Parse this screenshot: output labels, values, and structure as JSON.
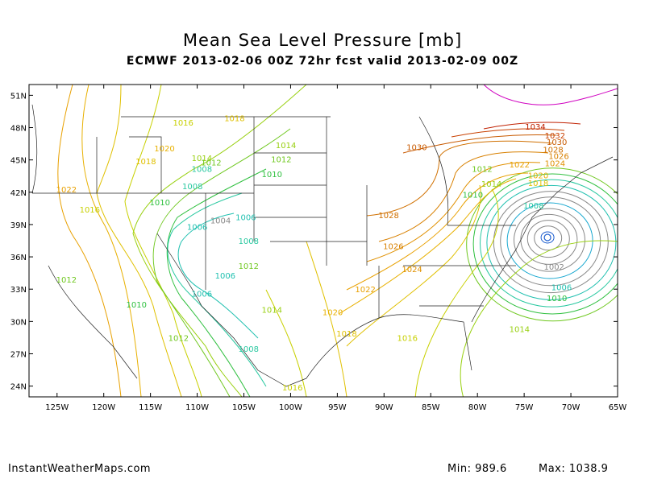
{
  "title": "Mean Sea Level Pressure [mb]",
  "subtitle": "ECMWF 2013-02-06 00Z 72hr fcst valid 2013-02-09 00Z",
  "footer": {
    "site": "InstantWeatherMaps.com",
    "min_label": "Min:",
    "min_value": "989.6",
    "max_label": "Max:",
    "max_value": "1038.9"
  },
  "map": {
    "lon_range": [
      -128,
      -65
    ],
    "lat_range": [
      23,
      52
    ],
    "lon_ticks": [
      {
        "v": -125,
        "label": "125W"
      },
      {
        "v": -120,
        "label": "120W"
      },
      {
        "v": -115,
        "label": "115W"
      },
      {
        "v": -110,
        "label": "110W"
      },
      {
        "v": -105,
        "label": "105W"
      },
      {
        "v": -100,
        "label": "100W"
      },
      {
        "v": -95,
        "label": "95W"
      },
      {
        "v": -90,
        "label": "90W"
      },
      {
        "v": -85,
        "label": "85W"
      },
      {
        "v": -80,
        "label": "80W"
      },
      {
        "v": -75,
        "label": "75W"
      },
      {
        "v": -70,
        "label": "70W"
      },
      {
        "v": -65,
        "label": "65W"
      }
    ],
    "lat_ticks": [
      {
        "v": 24,
        "label": "24N"
      },
      {
        "v": 27,
        "label": "27N"
      },
      {
        "v": 30,
        "label": "30N"
      },
      {
        "v": 33,
        "label": "33N"
      },
      {
        "v": 36,
        "label": "36N"
      },
      {
        "v": 39,
        "label": "39N"
      },
      {
        "v": 42,
        "label": "42N"
      },
      {
        "v": 45,
        "label": "45N"
      },
      {
        "v": 48,
        "label": "48N"
      },
      {
        "v": 51,
        "label": "51N"
      }
    ],
    "isobar_colors": {
      "990": "#2060d0",
      "1000": "#18a8d0",
      "1006": "#20c0b0",
      "1008": "#28c8a0",
      "1010": "#30c040",
      "1012": "#70c820",
      "1014": "#98d010",
      "1016": "#c8d000",
      "1018": "#e0c000",
      "1020": "#e8b000",
      "1022": "#e8a000",
      "1024": "#e09000",
      "1026": "#d88000",
      "1028": "#d07000",
      "1030": "#c85a00",
      "1032": "#c84000",
      "1034": "#c02000",
      "1036": "#d000c0"
    },
    "low_center": {
      "lon": -72.5,
      "lat": 37.8
    },
    "contour_labels": [
      {
        "text": "1016",
        "lon": -111.5,
        "lat": 48.2
      },
      {
        "text": "1018",
        "lon": -106,
        "lat": 48.6
      },
      {
        "text": "1020",
        "lon": -113.5,
        "lat": 45.8
      },
      {
        "text": "1018",
        "lon": -115.5,
        "lat": 44.6
      },
      {
        "text": "1014",
        "lon": -109.5,
        "lat": 44.9
      },
      {
        "text": "1012",
        "lon": -108.5,
        "lat": 44.5
      },
      {
        "text": "1008",
        "lon": -109.5,
        "lat": 43.9
      },
      {
        "text": "1008",
        "lon": -110.5,
        "lat": 42.3
      },
      {
        "text": "1010",
        "lon": -114,
        "lat": 40.8
      },
      {
        "text": "1022",
        "lon": -124,
        "lat": 42.0
      },
      {
        "text": "1016",
        "lon": -121.5,
        "lat": 40.1
      },
      {
        "text": "1004",
        "lon": -107.5,
        "lat": 39.1
      },
      {
        "text": "1006",
        "lon": -104.8,
        "lat": 39.4
      },
      {
        "text": "1006",
        "lon": -110,
        "lat": 38.5
      },
      {
        "text": "1008",
        "lon": -104.5,
        "lat": 37.2
      },
      {
        "text": "1012",
        "lon": -104.5,
        "lat": 34.9
      },
      {
        "text": "1006",
        "lon": -107,
        "lat": 34.0
      },
      {
        "text": "1006",
        "lon": -109.5,
        "lat": 32.3
      },
      {
        "text": "1012",
        "lon": -124,
        "lat": 33.6
      },
      {
        "text": "1010",
        "lon": -116.5,
        "lat": 31.3
      },
      {
        "text": "1014",
        "lon": -102,
        "lat": 30.8
      },
      {
        "text": "1012",
        "lon": -112,
        "lat": 28.2
      },
      {
        "text": "1008",
        "lon": -104.5,
        "lat": 27.2
      },
      {
        "text": "1014",
        "lon": -100.5,
        "lat": 46.1
      },
      {
        "text": "1012",
        "lon": -101,
        "lat": 44.8
      },
      {
        "text": "1010",
        "lon": -102,
        "lat": 43.4
      },
      {
        "text": "1030",
        "lon": -86.5,
        "lat": 45.9
      },
      {
        "text": "1028",
        "lon": -89.5,
        "lat": 39.6
      },
      {
        "text": "1026",
        "lon": -89,
        "lat": 36.7
      },
      {
        "text": "1024",
        "lon": -87,
        "lat": 34.6
      },
      {
        "text": "1022",
        "lon": -92,
        "lat": 32.7
      },
      {
        "text": "1020",
        "lon": -95.5,
        "lat": 30.6
      },
      {
        "text": "1018",
        "lon": -94,
        "lat": 28.6
      },
      {
        "text": "1016",
        "lon": -87.5,
        "lat": 28.2
      },
      {
        "text": "1016",
        "lon": -99.8,
        "lat": 23.6
      },
      {
        "text": "1034",
        "lon": -73.8,
        "lat": 47.8
      },
      {
        "text": "1032",
        "lon": -71.7,
        "lat": 47.0
      },
      {
        "text": "1030",
        "lon": -71.5,
        "lat": 46.4
      },
      {
        "text": "1028",
        "lon": -71.9,
        "lat": 45.7
      },
      {
        "text": "1026",
        "lon": -71.3,
        "lat": 45.1
      },
      {
        "text": "1024",
        "lon": -71.7,
        "lat": 44.4
      },
      {
        "text": "1022",
        "lon": -75.5,
        "lat": 44.3
      },
      {
        "text": "1020",
        "lon": -73.5,
        "lat": 43.3
      },
      {
        "text": "1018",
        "lon": -73.5,
        "lat": 42.6
      },
      {
        "text": "1014",
        "lon": -78.5,
        "lat": 42.5
      },
      {
        "text": "1010",
        "lon": -80.5,
        "lat": 41.5
      },
      {
        "text": "1012",
        "lon": -79.5,
        "lat": 43.9
      },
      {
        "text": "1008",
        "lon": -74,
        "lat": 40.5
      },
      {
        "text": "1002",
        "lon": -71.8,
        "lat": 34.8
      },
      {
        "text": "1006",
        "lon": -71,
        "lat": 32.9
      },
      {
        "text": "1010",
        "lon": -71.5,
        "lat": 31.9
      },
      {
        "text": "1014",
        "lon": -75.5,
        "lat": 29.0
      }
    ]
  }
}
